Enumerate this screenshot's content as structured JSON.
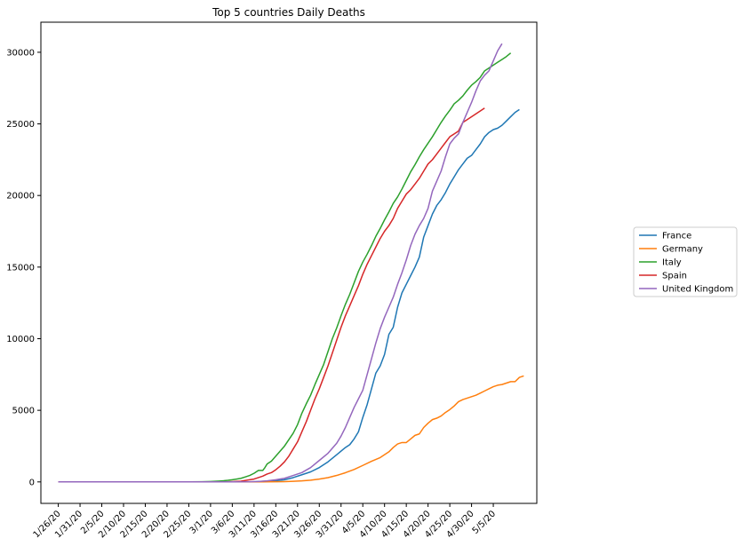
{
  "chart_data": {
    "type": "line",
    "title": "Top 5 countries Daily Deaths",
    "xlabel": "",
    "ylabel": "",
    "x_tick_labels": [
      "1/26/20",
      "1/31/20",
      "2/5/20",
      "2/10/20",
      "2/15/20",
      "2/20/20",
      "2/25/20",
      "3/1/20",
      "3/6/20",
      "3/11/20",
      "3/16/20",
      "3/21/20",
      "3/26/20",
      "3/31/20",
      "4/5/20",
      "4/10/20",
      "4/15/20",
      "4/20/20",
      "4/25/20",
      "4/30/20",
      "5/5/20"
    ],
    "x_range_days": [
      -4,
      110
    ],
    "y_ticks": [
      0,
      5000,
      10000,
      15000,
      20000,
      25000,
      30000
    ],
    "ylim": [
      -1500,
      32100
    ],
    "grid": false,
    "legend_position": "right, outside plot",
    "series": [
      {
        "name": "France",
        "color": "#1f77b4",
        "points": [
          [
            0,
            0
          ],
          [
            40,
            0
          ],
          [
            45,
            10
          ],
          [
            50,
            80
          ],
          [
            52,
            150
          ],
          [
            54,
            300
          ],
          [
            56,
            500
          ],
          [
            58,
            700
          ],
          [
            60,
            1000
          ],
          [
            62,
            1400
          ],
          [
            64,
            1900
          ],
          [
            66,
            2400
          ],
          [
            67,
            2600
          ],
          [
            68,
            3000
          ],
          [
            69,
            3500
          ],
          [
            70,
            4500
          ],
          [
            71,
            5400
          ],
          [
            72,
            6500
          ],
          [
            73,
            7600
          ],
          [
            74,
            8100
          ],
          [
            75,
            8900
          ],
          [
            76,
            10300
          ],
          [
            77,
            10800
          ],
          [
            78,
            12200
          ],
          [
            79,
            13200
          ],
          [
            80,
            13800
          ],
          [
            81,
            14400
          ],
          [
            82,
            15000
          ],
          [
            83,
            15700
          ],
          [
            84,
            17100
          ],
          [
            85,
            17900
          ],
          [
            86,
            18700
          ],
          [
            87,
            19300
          ],
          [
            88,
            19700
          ],
          [
            89,
            20200
          ],
          [
            90,
            20800
          ],
          [
            91,
            21300
          ],
          [
            92,
            21800
          ],
          [
            93,
            22200
          ],
          [
            94,
            22600
          ],
          [
            95,
            22800
          ],
          [
            96,
            23200
          ],
          [
            97,
            23600
          ],
          [
            98,
            24100
          ],
          [
            99,
            24400
          ],
          [
            100,
            24600
          ],
          [
            101,
            24700
          ],
          [
            102,
            24900
          ],
          [
            103,
            25200
          ],
          [
            104,
            25500
          ],
          [
            105,
            25800
          ],
          [
            106,
            26000
          ]
        ]
      },
      {
        "name": "Germany",
        "color": "#ff7f0e",
        "points": [
          [
            0,
            0
          ],
          [
            47,
            0
          ],
          [
            50,
            10
          ],
          [
            52,
            20
          ],
          [
            54,
            40
          ],
          [
            56,
            70
          ],
          [
            58,
            120
          ],
          [
            60,
            200
          ],
          [
            62,
            300
          ],
          [
            64,
            450
          ],
          [
            66,
            640
          ],
          [
            68,
            870
          ],
          [
            70,
            1150
          ],
          [
            72,
            1440
          ],
          [
            74,
            1700
          ],
          [
            76,
            2100
          ],
          [
            77,
            2400
          ],
          [
            78,
            2650
          ],
          [
            79,
            2750
          ],
          [
            80,
            2750
          ],
          [
            81,
            3000
          ],
          [
            82,
            3250
          ],
          [
            83,
            3350
          ],
          [
            84,
            3800
          ],
          [
            85,
            4100
          ],
          [
            86,
            4350
          ],
          [
            87,
            4450
          ],
          [
            88,
            4600
          ],
          [
            89,
            4850
          ],
          [
            90,
            5050
          ],
          [
            91,
            5300
          ],
          [
            92,
            5600
          ],
          [
            93,
            5750
          ],
          [
            94,
            5850
          ],
          [
            95,
            5950
          ],
          [
            96,
            6050
          ],
          [
            97,
            6200
          ],
          [
            98,
            6350
          ],
          [
            99,
            6500
          ],
          [
            100,
            6650
          ],
          [
            101,
            6750
          ],
          [
            102,
            6800
          ],
          [
            103,
            6900
          ],
          [
            104,
            7000
          ],
          [
            105,
            7000
          ],
          [
            106,
            7300
          ],
          [
            107,
            7400
          ]
        ]
      },
      {
        "name": "Italy",
        "color": "#2ca02c",
        "points": [
          [
            0,
            0
          ],
          [
            30,
            0
          ],
          [
            33,
            10
          ],
          [
            35,
            30
          ],
          [
            37,
            60
          ],
          [
            38,
            80
          ],
          [
            39,
            110
          ],
          [
            40,
            150
          ],
          [
            41,
            200
          ],
          [
            42,
            250
          ],
          [
            43,
            350
          ],
          [
            44,
            450
          ],
          [
            45,
            600
          ],
          [
            46,
            800
          ],
          [
            47,
            800
          ],
          [
            47.5,
            1000
          ],
          [
            48,
            1250
          ],
          [
            49,
            1450
          ],
          [
            50,
            1800
          ],
          [
            51,
            2150
          ],
          [
            52,
            2500
          ],
          [
            53,
            2950
          ],
          [
            54,
            3400
          ],
          [
            55,
            4000
          ],
          [
            56,
            4800
          ],
          [
            57,
            5450
          ],
          [
            58,
            6050
          ],
          [
            59,
            6800
          ],
          [
            60,
            7500
          ],
          [
            61,
            8200
          ],
          [
            62,
            9100
          ],
          [
            63,
            10000
          ],
          [
            64,
            10750
          ],
          [
            65,
            11600
          ],
          [
            66,
            12400
          ],
          [
            67,
            13100
          ],
          [
            68,
            13900
          ],
          [
            69,
            14700
          ],
          [
            70,
            15350
          ],
          [
            71,
            15900
          ],
          [
            72,
            16500
          ],
          [
            73,
            17150
          ],
          [
            74,
            17700
          ],
          [
            75,
            18300
          ],
          [
            76,
            18850
          ],
          [
            77,
            19450
          ],
          [
            78,
            19900
          ],
          [
            79,
            20450
          ],
          [
            80,
            21050
          ],
          [
            81,
            21650
          ],
          [
            82,
            22150
          ],
          [
            83,
            22700
          ],
          [
            84,
            23200
          ],
          [
            85,
            23650
          ],
          [
            86,
            24100
          ],
          [
            87,
            24600
          ],
          [
            88,
            25100
          ],
          [
            89,
            25550
          ],
          [
            90,
            25950
          ],
          [
            91,
            26400
          ],
          [
            92,
            26650
          ],
          [
            93,
            26950
          ],
          [
            94,
            27350
          ],
          [
            95,
            27700
          ],
          [
            96,
            27950
          ],
          [
            97,
            28250
          ],
          [
            98,
            28700
          ],
          [
            99,
            28900
          ],
          [
            100,
            29100
          ],
          [
            101,
            29300
          ],
          [
            102,
            29500
          ],
          [
            103,
            29700
          ],
          [
            104,
            29950
          ]
        ]
      },
      {
        "name": "Spain",
        "color": "#d62728",
        "points": [
          [
            0,
            0
          ],
          [
            38,
            0
          ],
          [
            40,
            20
          ],
          [
            42,
            50
          ],
          [
            44,
            150
          ],
          [
            45,
            200
          ],
          [
            46,
            300
          ],
          [
            47,
            400
          ],
          [
            48,
            550
          ],
          [
            49,
            650
          ],
          [
            50,
            850
          ],
          [
            51,
            1100
          ],
          [
            52,
            1400
          ],
          [
            53,
            1800
          ],
          [
            54,
            2300
          ],
          [
            55,
            2800
          ],
          [
            56,
            3500
          ],
          [
            57,
            4200
          ],
          [
            58,
            5000
          ],
          [
            59,
            5800
          ],
          [
            60,
            6500
          ],
          [
            61,
            7300
          ],
          [
            62,
            8100
          ],
          [
            63,
            9000
          ],
          [
            64,
            9900
          ],
          [
            65,
            10800
          ],
          [
            66,
            11600
          ],
          [
            67,
            12300
          ],
          [
            68,
            13000
          ],
          [
            69,
            13700
          ],
          [
            70,
            14500
          ],
          [
            71,
            15200
          ],
          [
            72,
            15800
          ],
          [
            73,
            16400
          ],
          [
            74,
            17000
          ],
          [
            75,
            17500
          ],
          [
            76,
            17900
          ],
          [
            77,
            18400
          ],
          [
            78,
            19100
          ],
          [
            79,
            19600
          ],
          [
            80,
            20100
          ],
          [
            81,
            20400
          ],
          [
            82,
            20800
          ],
          [
            83,
            21200
          ],
          [
            84,
            21700
          ],
          [
            85,
            22200
          ],
          [
            86,
            22500
          ],
          [
            87,
            22900
          ],
          [
            88,
            23300
          ],
          [
            89,
            23700
          ],
          [
            90,
            24100
          ],
          [
            91,
            24300
          ],
          [
            92,
            24500
          ],
          [
            93,
            25100
          ],
          [
            94,
            25300
          ],
          [
            95,
            25500
          ],
          [
            96,
            25700
          ],
          [
            97,
            25900
          ],
          [
            98,
            26100
          ]
        ]
      },
      {
        "name": "United Kingdom",
        "color": "#9467bd",
        "points": [
          [
            0,
            0
          ],
          [
            40,
            0
          ],
          [
            44,
            10
          ],
          [
            46,
            30
          ],
          [
            48,
            70
          ],
          [
            50,
            150
          ],
          [
            52,
            250
          ],
          [
            54,
            450
          ],
          [
            56,
            650
          ],
          [
            58,
            1000
          ],
          [
            60,
            1500
          ],
          [
            62,
            2000
          ],
          [
            64,
            2700
          ],
          [
            65,
            3200
          ],
          [
            66,
            3800
          ],
          [
            67,
            4500
          ],
          [
            68,
            5200
          ],
          [
            69,
            5800
          ],
          [
            70,
            6400
          ],
          [
            71,
            7500
          ],
          [
            72,
            8600
          ],
          [
            73,
            9700
          ],
          [
            74,
            10700
          ],
          [
            75,
            11500
          ],
          [
            76,
            12200
          ],
          [
            77,
            12900
          ],
          [
            78,
            13800
          ],
          [
            79,
            14600
          ],
          [
            80,
            15500
          ],
          [
            81,
            16500
          ],
          [
            82,
            17300
          ],
          [
            83,
            17900
          ],
          [
            84,
            18400
          ],
          [
            85,
            19100
          ],
          [
            86,
            20300
          ],
          [
            87,
            21000
          ],
          [
            88,
            21700
          ],
          [
            89,
            22700
          ],
          [
            90,
            23600
          ],
          [
            91,
            24000
          ],
          [
            92,
            24300
          ],
          [
            93,
            25100
          ],
          [
            94,
            25800
          ],
          [
            95,
            26500
          ],
          [
            96,
            27300
          ],
          [
            97,
            28000
          ],
          [
            98,
            28400
          ],
          [
            99,
            28700
          ],
          [
            100,
            29400
          ],
          [
            101,
            30100
          ],
          [
            102,
            30600
          ]
        ]
      }
    ]
  }
}
